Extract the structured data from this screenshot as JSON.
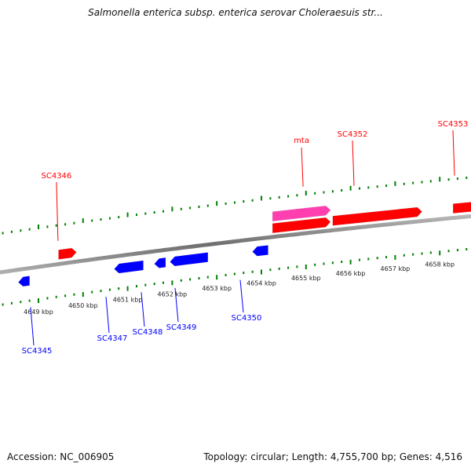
{
  "title": "Salmonella enterica subsp. enterica serovar Choleraesuis str...",
  "footer": {
    "accession_label": "Accession:",
    "accession": "NC_006905",
    "topology_label": "Topology:",
    "topology": "circular",
    "length_label": "Length:",
    "length": "4,755,700 bp",
    "genes_label": "Genes:",
    "genes": "4,516"
  },
  "colors": {
    "forward_gene": "#ff0000",
    "reverse_gene": "#0000ff",
    "rna_gene": "#ff3fb0",
    "tick": "#008000",
    "backbone": "#888888"
  },
  "scale": {
    "unit": "kbp",
    "ticks": [
      {
        "kbp": 4649,
        "label": "4649 kbp"
      },
      {
        "kbp": 4650,
        "label": "4650 kbp"
      },
      {
        "kbp": 4651,
        "label": "4651 kbp"
      },
      {
        "kbp": 4652,
        "label": "4652 kbp"
      },
      {
        "kbp": 4653,
        "label": "4653 kbp"
      },
      {
        "kbp": 4654,
        "label": "4654 kbp"
      },
      {
        "kbp": 4655,
        "label": "4655 kbp"
      },
      {
        "kbp": 4656,
        "label": "4656 kbp"
      },
      {
        "kbp": 4657,
        "label": "4657 kbp"
      },
      {
        "kbp": 4658,
        "label": "4658 kbp"
      }
    ]
  },
  "genes": [
    {
      "label": "SC4345",
      "strand": "reverse",
      "type": "CDS",
      "start_kbp": 4648.55,
      "end_kbp": 4648.8
    },
    {
      "label": "SC4346",
      "strand": "forward",
      "type": "CDS",
      "start_kbp": 4649.45,
      "end_kbp": 4649.85
    },
    {
      "label": "SC4347",
      "strand": "reverse",
      "type": "CDS",
      "start_kbp": 4650.7,
      "end_kbp": 4651.35
    },
    {
      "label": "SC4348",
      "strand": "reverse",
      "type": "CDS",
      "start_kbp": 4651.6,
      "end_kbp": 4651.85
    },
    {
      "label": "SC4349",
      "strand": "reverse",
      "type": "CDS",
      "start_kbp": 4651.95,
      "end_kbp": 4652.8
    },
    {
      "label": "SC4350",
      "strand": "reverse",
      "type": "CDS",
      "start_kbp": 4653.8,
      "end_kbp": 4654.15
    },
    {
      "label": "",
      "strand": "forward",
      "type": "CDS",
      "start_kbp": 4654.25,
      "end_kbp": 4655.55
    },
    {
      "label": "mta",
      "strand": "forward",
      "type": "RNA",
      "start_kbp": 4654.25,
      "end_kbp": 4655.55
    },
    {
      "label": "SC4352",
      "strand": "forward",
      "type": "CDS",
      "start_kbp": 4655.6,
      "end_kbp": 4657.6
    },
    {
      "label": "SC4353",
      "strand": "forward",
      "type": "CDS",
      "start_kbp": 4658.3,
      "end_kbp": 4659.3
    }
  ]
}
